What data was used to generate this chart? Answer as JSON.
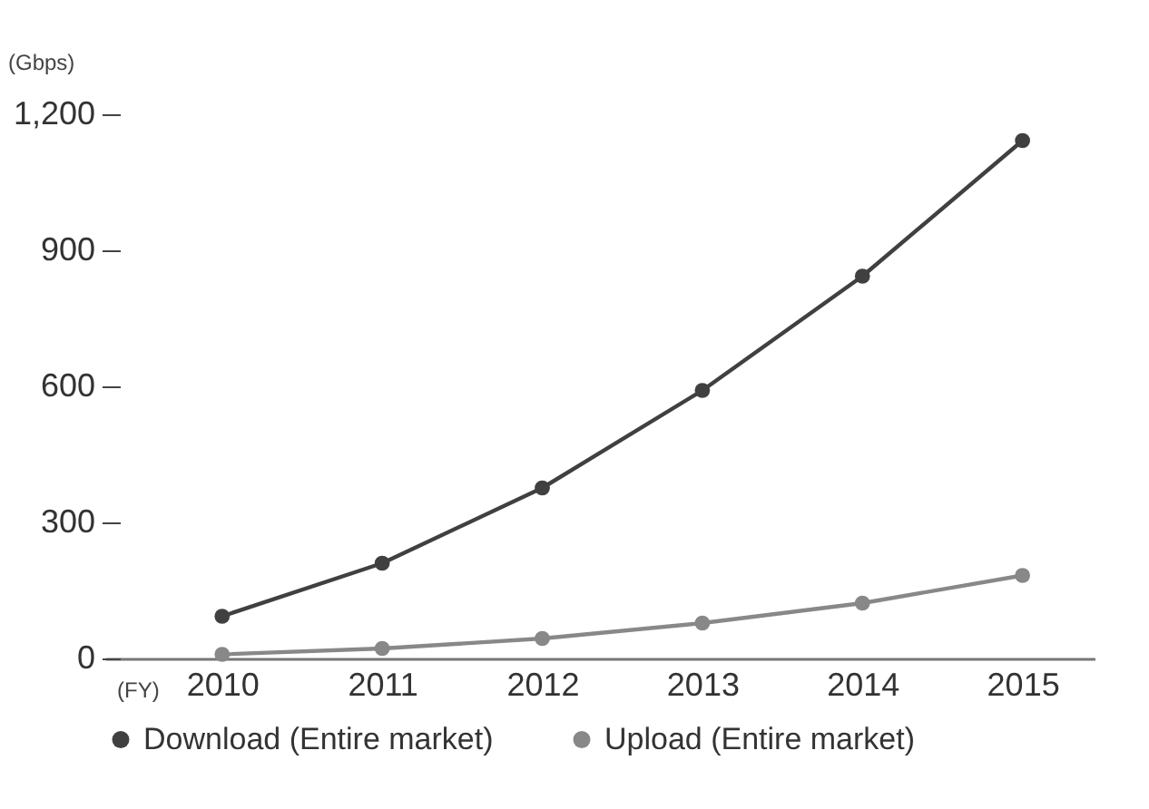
{
  "chart_data": {
    "type": "line",
    "xlabel": "(FY)",
    "ylabel": "(Gbps)",
    "categories": [
      "2010",
      "2011",
      "2012",
      "2013",
      "2014",
      "2015"
    ],
    "series": [
      {
        "name": "Download (Entire market)",
        "color": "#404040",
        "values": [
          93,
          210,
          376,
          591,
          843,
          1142
        ]
      },
      {
        "name": "Upload (Entire market)",
        "color": "#888888",
        "values": [
          9,
          22,
          44,
          78,
          122,
          183
        ]
      }
    ],
    "ylim": [
      0,
      1200
    ],
    "yticks": [
      0,
      300,
      600,
      900,
      {
        "value": 1200,
        "label": "1,200"
      }
    ],
    "grid": false,
    "legend": "bottom left",
    "marker": "circle",
    "line_style": "solid"
  }
}
